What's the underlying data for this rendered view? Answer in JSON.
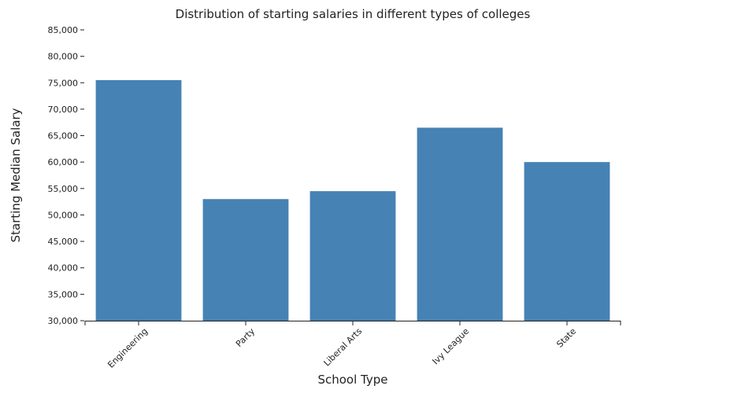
{
  "chart_data": {
    "type": "bar",
    "title": "Distribution of starting salaries in different types of colleges",
    "xlabel": "School Type",
    "ylabel": "Starting Median Salary",
    "categories": [
      "Engineering",
      "Party",
      "Liberal Arts",
      "Ivy League",
      "State"
    ],
    "values": [
      75500,
      53000,
      54500,
      66500,
      60000
    ],
    "ylim": [
      30000,
      85000
    ],
    "yticks": [
      30000,
      35000,
      40000,
      45000,
      50000,
      55000,
      60000,
      65000,
      70000,
      75000,
      80000,
      85000
    ],
    "ytick_labels": [
      "30,000",
      "35,000",
      "40,000",
      "45,000",
      "50,000",
      "55,000",
      "60,000",
      "65,000",
      "70,000",
      "75,000",
      "80,000",
      "85,000"
    ],
    "grid": false,
    "legend": "none",
    "bar_color": "#4682b4"
  }
}
